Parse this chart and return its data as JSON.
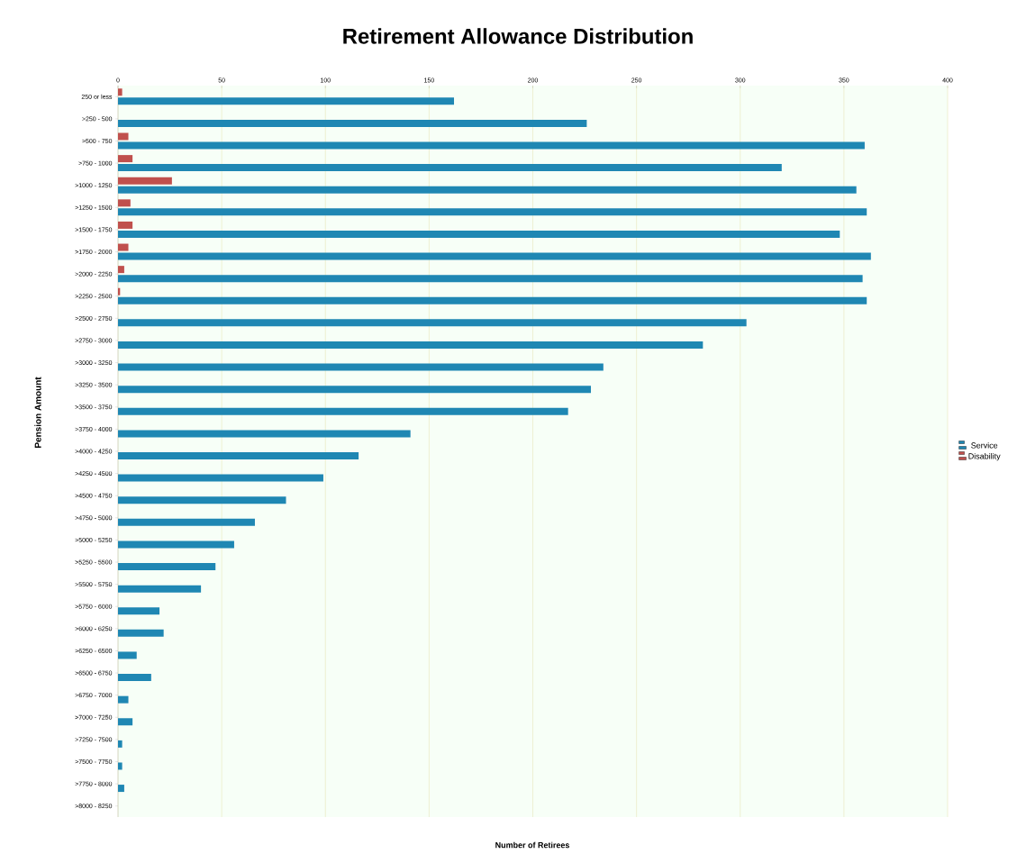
{
  "chart_data": {
    "type": "bar",
    "orientation": "horizontal",
    "title": "Retirement Allowance Distribution",
    "xlabel": "Number of Retirees",
    "ylabel": "Pension Amount",
    "categories": [
      "250 or less",
      ">250 - 500",
      ">500 - 750",
      ">750 - 1000",
      ">1000 - 1250",
      ">1250 - 1500",
      ">1500 - 1750",
      ">1750 - 2000",
      ">2000 - 2250",
      ">2250 - 2500",
      ">2500 - 2750",
      ">2750 - 3000",
      ">3000 - 3250",
      ">3250 - 3500",
      ">3500 - 3750",
      ">3750 - 4000",
      ">4000 - 4250",
      ">4250 - 4500",
      ">4500 - 4750",
      ">4750 - 5000",
      ">5000 - 5250",
      ">5250 - 5500",
      ">5500 - 5750",
      ">5750 - 6000",
      ">6000 - 6250",
      ">6250 - 6500",
      ">6500 - 6750",
      ">6750 - 7000",
      ">7000 - 7250",
      ">7250 - 7500",
      ">7500 - 7750",
      ">7750 - 8000",
      ">8000 - 8250"
    ],
    "series": [
      {
        "name": "Service",
        "color": "#1f87b3",
        "values": [
          162,
          226,
          360,
          320,
          356,
          361,
          348,
          363,
          359,
          361,
          303,
          282,
          234,
          228,
          217,
          141,
          116,
          99,
          81,
          66,
          56,
          47,
          40,
          20,
          22,
          9,
          16,
          5,
          7,
          2,
          2,
          3,
          0
        ]
      },
      {
        "name": "Disability",
        "color": "#c0504d",
        "values": [
          2,
          0,
          5,
          7,
          26,
          6,
          7,
          5,
          3,
          1,
          0,
          0,
          0,
          0,
          0,
          0,
          0,
          0,
          0,
          0,
          0,
          0,
          0,
          0,
          0,
          0,
          0,
          0,
          0,
          0,
          0,
          0,
          0
        ]
      }
    ],
    "xlim": [
      0,
      400
    ],
    "xticks": [
      0,
      50,
      100,
      150,
      200,
      250,
      300,
      350,
      400
    ],
    "grid": "x",
    "legend": "right"
  }
}
